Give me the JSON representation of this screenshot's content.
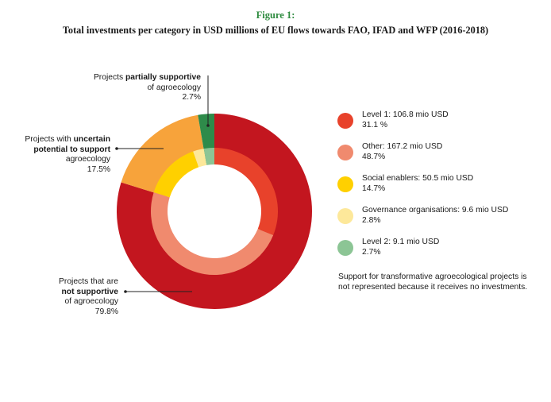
{
  "figure_label": "Figure 1:",
  "chart_data": {
    "type": "donut",
    "title": "Total investments per category in USD millions of EU flows towards FAO, IFAD and WFP (2016-2018)",
    "outer_ring": [
      {
        "name": "not supportive",
        "percent": 79.8,
        "color": "#c3161f"
      },
      {
        "name": "uncertain potential to support",
        "percent": 17.5,
        "color": "#f7a33b"
      },
      {
        "name": "partially supportive",
        "percent": 2.7,
        "color": "#2e8b4a"
      }
    ],
    "inner_ring": [
      {
        "name": "Level 1",
        "value": 106.8,
        "percent": 31.1,
        "color": "#e8422b"
      },
      {
        "name": "Other",
        "value": 167.2,
        "percent": 48.7,
        "color": "#f08a6e"
      },
      {
        "name": "Social enablers",
        "value": 50.5,
        "percent": 14.7,
        "color": "#ffd000"
      },
      {
        "name": "Governance organisations",
        "value": 9.6,
        "percent": 2.8,
        "color": "#fde89a"
      },
      {
        "name": "Level 2",
        "value": 9.1,
        "percent": 2.7,
        "color": "#8cc595"
      }
    ]
  },
  "annotations": {
    "partial": {
      "l1_pre": "Projects ",
      "l1_bold": "partially supportive",
      "l2": "of agroecology",
      "l3": "2.7%"
    },
    "uncertain": {
      "l1_pre": "Projects with ",
      "l1_bold": "uncertain",
      "l2_bold": "potential to support",
      "l3": "agroecology",
      "l4": "17.5%"
    },
    "notsupp": {
      "l1": "Projects that are",
      "l2_bold": "not supportive",
      "l3": "of agroecology",
      "l4": "79.8%"
    }
  },
  "legend": [
    {
      "label": "Level 1: 106.8 mio USD",
      "pct": "31.1 %",
      "color": "#e8422b"
    },
    {
      "label": "Other: 167.2 mio USD",
      "pct": "48.7%",
      "color": "#f08a6e"
    },
    {
      "label": "Social enablers: 50.5 mio USD",
      "pct": "14.7%",
      "color": "#ffd000"
    },
    {
      "label": "Governance organisations: 9.6 mio USD",
      "pct": "2.8%",
      "color": "#fde89a"
    },
    {
      "label": "Level 2: 9.1 mio USD",
      "pct": "2.7%",
      "color": "#8cc595"
    }
  ],
  "note": "Support for transformative agroecological projects is not represented because it receives no investments."
}
